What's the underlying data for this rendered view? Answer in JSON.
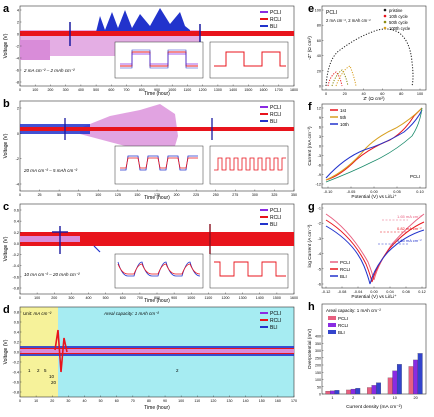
{
  "colors": {
    "pcu": "#8a2be2",
    "pcu_fill": "#d98cd9",
    "rcu": "#e8141c",
    "bcu": "#2233cc",
    "bli": "#1a1aa0",
    "grid": "#dddddd",
    "bg_panel_d_left": "#f6f29a",
    "bg_panel_d_right": "#a6ecf2"
  },
  "panels": {
    "a": {
      "letter": "a",
      "condition": "2 mA cm⁻² – 2 mAh cm⁻²",
      "legend": [
        "PCLI",
        "RCLI",
        "BLI"
      ],
      "xlabel": "Time (hour)",
      "ylabel": "Voltage (V)",
      "xticks": [
        "0",
        "100",
        "200",
        "300",
        "400",
        "500",
        "600",
        "700",
        "800",
        "900",
        "1000",
        "1100",
        "1200",
        "1300",
        "1400",
        "1500",
        "1600",
        "1700",
        "1800"
      ],
      "yticks": [
        "4",
        "2",
        "0",
        "-2",
        "-4",
        "-6",
        "-8"
      ]
    },
    "b": {
      "letter": "b",
      "condition": "20 mA cm⁻² – 5 mAh cm⁻²",
      "legend": [
        "PCLI",
        "RCLI",
        "BLI"
      ],
      "xlabel": "Time (hour)",
      "ylabel": "Voltage (V)",
      "xticks": [
        "0",
        "25",
        "50",
        "75",
        "100",
        "125",
        "150",
        "175",
        "200",
        "225",
        "250",
        "275",
        "300",
        "325",
        "350"
      ],
      "yticks": [
        "2",
        "0",
        "-2",
        "-4"
      ]
    },
    "c": {
      "letter": "c",
      "condition": "10 mA cm⁻² – 20 mAh cm⁻²",
      "legend": [
        "PCLI",
        "RCLI",
        "BLI"
      ],
      "xlabel": "Time (hour)",
      "ylabel": "Voltage (V)",
      "xticks": [
        "0",
        "100",
        "200",
        "300",
        "400",
        "500",
        "600",
        "700",
        "800",
        "900",
        "1000",
        "1100",
        "1200",
        "1300",
        "1400",
        "1500",
        "1600"
      ],
      "yticks": [
        "0.6",
        "0.4",
        "0.2",
        "0.0",
        "-0.2",
        "-0.4",
        "-0.6",
        "-0.8"
      ]
    },
    "d": {
      "letter": "d",
      "left_label": "Unit: mA cm⁻²",
      "right_label": "Areal capacity: 1 mAh cm⁻²",
      "legend": [
        "PCLI",
        "RCLI",
        "BLI"
      ],
      "xlabel": "Time (hour)",
      "ylabel": "Voltage (V)",
      "step_labels": [
        "1",
        "2",
        "5",
        "10",
        "20",
        "2"
      ],
      "xticks": [
        "0",
        "10",
        "20",
        "30",
        "40",
        "50",
        "60",
        "70",
        "80",
        "90",
        "100",
        "110",
        "120",
        "130",
        "140",
        "150",
        "160",
        "170"
      ],
      "yticks": [
        "0.8",
        "0.6",
        "0.4",
        "0.2",
        "0.0",
        "-0.2",
        "-0.4",
        "-0.6",
        "-0.8"
      ]
    },
    "e": {
      "letter": "e",
      "label": "PCLI",
      "subtitle": "2 mA cm⁻², 2 mAh cm⁻²",
      "legend": [
        "pristine",
        "10th cycle",
        "50th cycle",
        "100th cycle"
      ],
      "xlabel": "Z′ (Ω cm²)",
      "ylabel": "-Z″ (Ω cm²)",
      "xticks": [
        "0",
        "20",
        "40",
        "60",
        "80",
        "100"
      ],
      "yticks": [
        "0",
        "20",
        "40",
        "60",
        "80",
        "100"
      ]
    },
    "f": {
      "letter": "f",
      "label": "PCLI",
      "legend": [
        "1st",
        "5th",
        "10th"
      ],
      "xlabel": "Potential (V) vs Li/Li⁺",
      "ylabel": "Current (mA cm⁻²)",
      "xticks": [
        "-0.10",
        "-0.05",
        "0.00",
        "0.05",
        "0.10"
      ],
      "yticks": [
        "12",
        "9",
        "6",
        "3",
        "0",
        "-3",
        "-6",
        "-9",
        "-12"
      ]
    },
    "g": {
      "letter": "g",
      "legend": [
        "PCLI",
        "RCLI",
        "BLI"
      ],
      "annotations": [
        "1.65 mA cm⁻²",
        "0.82 mA cm⁻²",
        "0.65 mA cm⁻²"
      ],
      "xlabel": "Potential (V) vs Li/Li⁺",
      "ylabel": "log Current (A cm⁻²)",
      "xticks": [
        "-0.12",
        "-0.08",
        "-0.04",
        "0.00",
        "0.04",
        "0.08",
        "0.12"
      ],
      "yticks": [
        "-1",
        "-2",
        "-3",
        "-4",
        "-5",
        "-6"
      ]
    },
    "h": {
      "letter": "h",
      "title": "Areal capacity: 1 mAh cm⁻²",
      "legend": [
        "PCLI",
        "RCLI",
        "BLI"
      ],
      "xlabel": "Current density (mA cm⁻²)",
      "ylabel": "Overpotential (mV)",
      "yticks": [
        "0",
        "50",
        "100",
        "150",
        "200",
        "250",
        "300",
        "350",
        "400"
      ]
    }
  },
  "chart_data": {
    "type": "bar",
    "title": "Areal capacity: 1 mAh cm⁻²",
    "xlabel": "Current density (mA cm⁻²)",
    "ylabel": "Overpotential (mV)",
    "categories": [
      "1",
      "2",
      "5",
      "10",
      "20"
    ],
    "ylim": [
      0,
      400
    ],
    "series": [
      {
        "name": "PCLI",
        "values": [
          20,
          28,
          45,
          112,
          190
        ]
      },
      {
        "name": "RCLI",
        "values": [
          22,
          34,
          60,
          160,
          235
        ]
      },
      {
        "name": "BLI",
        "values": [
          26,
          40,
          78,
          205,
          280
        ]
      }
    ]
  }
}
